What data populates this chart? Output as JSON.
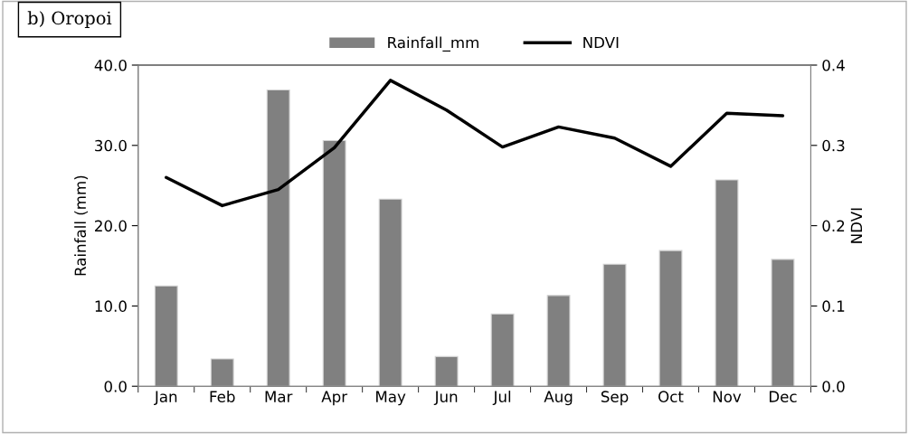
{
  "chart_data": {
    "type": "bar",
    "title": "b) Oropoi",
    "categories": [
      "Jan",
      "Feb",
      "Mar",
      "Apr",
      "May",
      "Jun",
      "Jul",
      "Aug",
      "Sep",
      "Oct",
      "Nov",
      "Dec"
    ],
    "series": [
      {
        "name": "Rainfall_mm",
        "color": "#808080",
        "values": [
          12.5,
          3.4,
          36.9,
          30.6,
          23.3,
          3.7,
          9.0,
          11.3,
          15.2,
          16.9,
          25.7,
          15.8
        ]
      },
      {
        "name": "NDVI",
        "type": "line",
        "axis": "y2",
        "color": "#000000",
        "values": [
          0.26,
          0.225,
          0.245,
          0.297,
          0.381,
          0.344,
          0.298,
          0.323,
          0.309,
          0.274,
          0.34,
          0.337
        ]
      }
    ],
    "ylabel": "Rainfall (mm)",
    "y2label": "NDVI",
    "ylim": [
      0,
      40
    ],
    "yticks": [
      {
        "value": 0,
        "label": "0.0"
      },
      {
        "value": 10,
        "label": "10.0"
      },
      {
        "value": 20,
        "label": "20.0"
      },
      {
        "value": 30,
        "label": "30.0"
      },
      {
        "value": 40,
        "label": "40.0"
      }
    ],
    "y2lim": [
      0,
      0.4
    ],
    "y2ticks": [
      {
        "value": 0,
        "label": "0.0"
      },
      0.1,
      0.2,
      0.3,
      0.4
    ],
    "legend": "top",
    "grid": false
  }
}
